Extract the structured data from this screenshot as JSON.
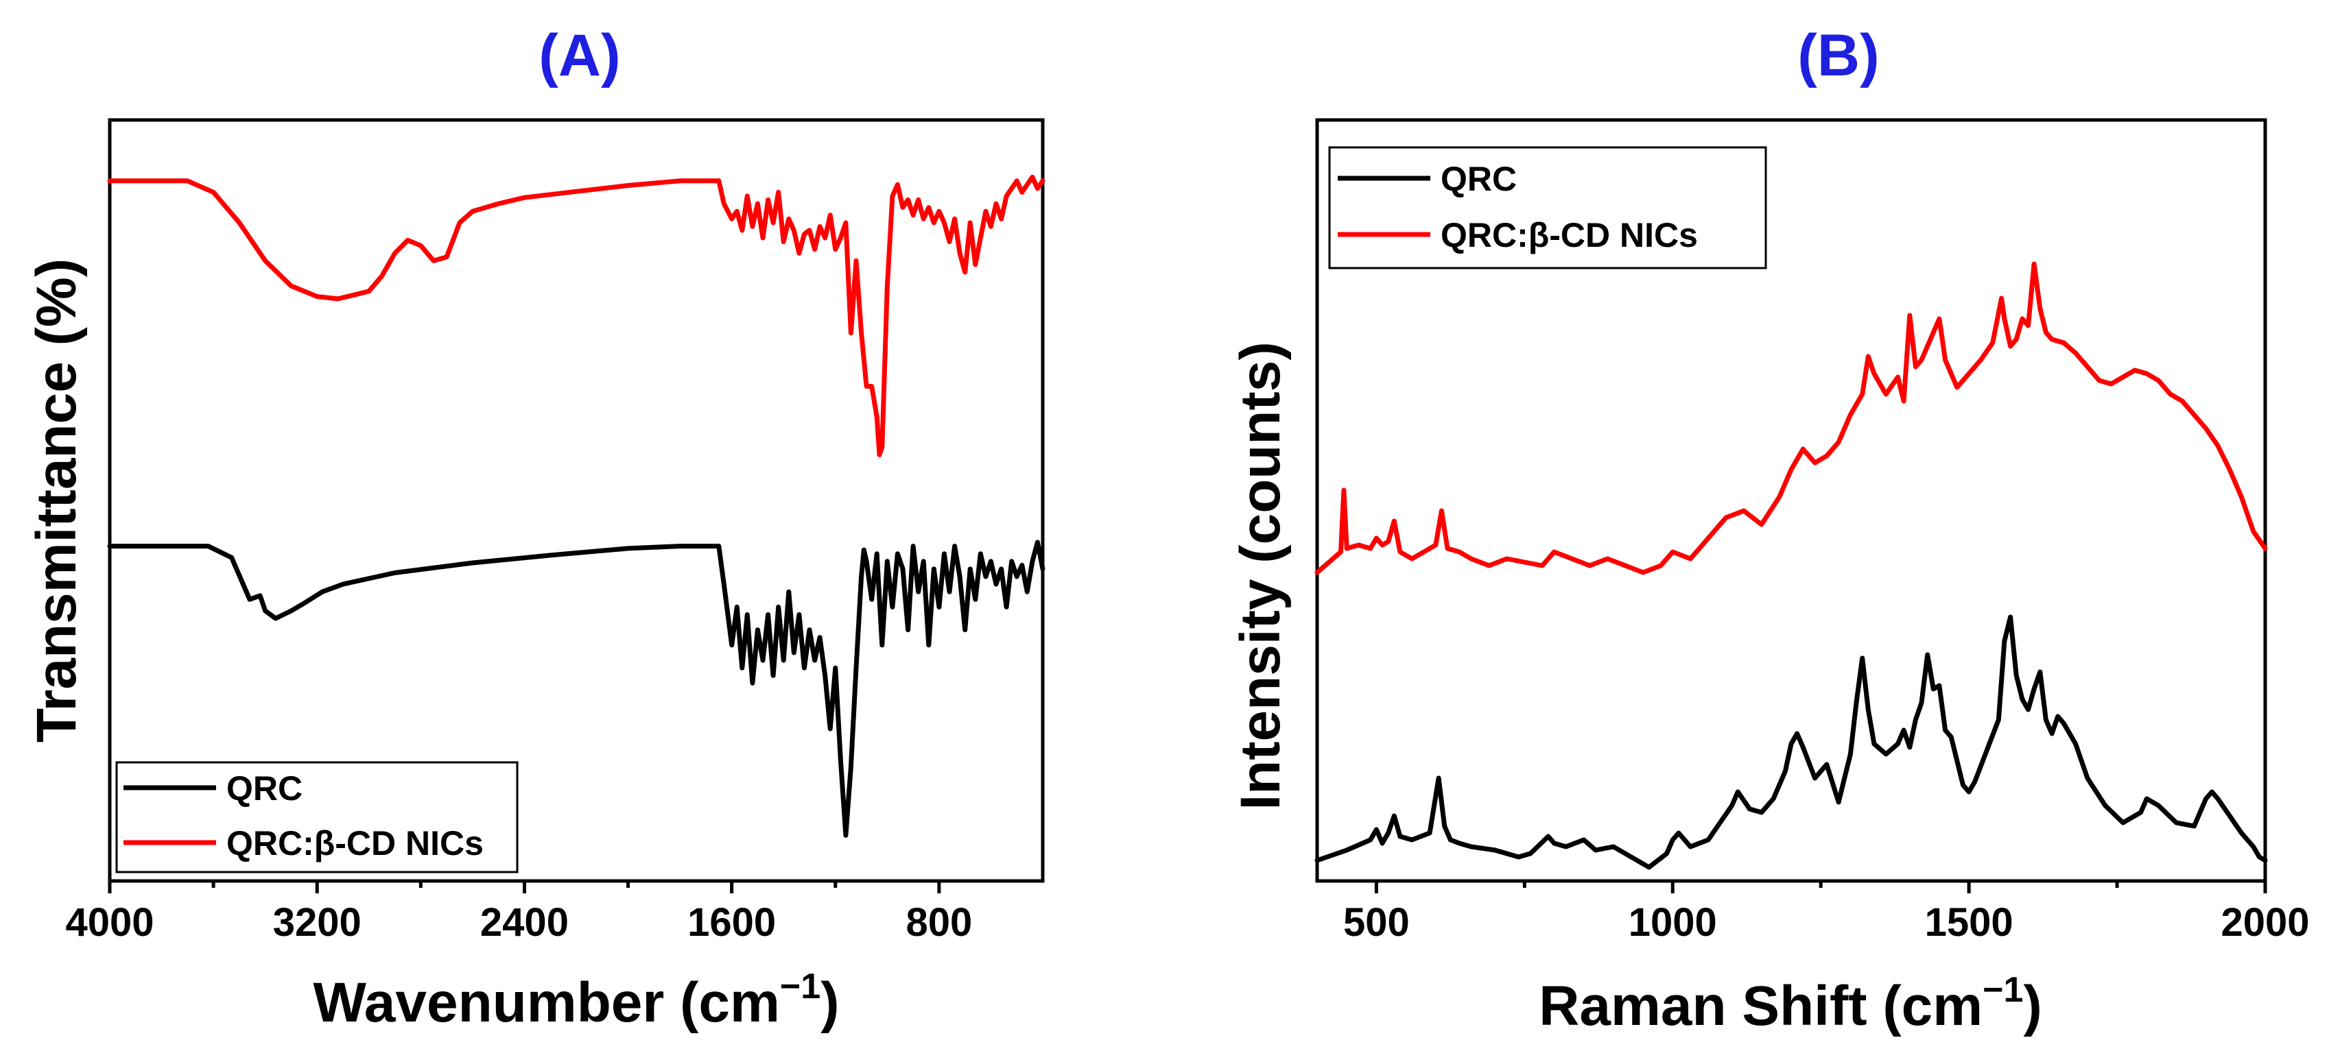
{
  "chart_data": [
    {
      "type": "line",
      "panel_label": "(A)",
      "xlabel": "Wavenumber (cm",
      "xlabel_sup": "−1",
      "xlabel_close": ")",
      "ylabel": "Transmittance (%)",
      "xlim": [
        4000,
        400
      ],
      "x_reversed": true,
      "x_ticks": [
        4000,
        3200,
        2400,
        1600,
        800
      ],
      "y_ticks_labeled": false,
      "grid": false,
      "legend_position": "bottom-left",
      "colors": {
        "QRC": "#000000",
        "QRC:β-CD NICs": "#ff0000"
      },
      "series": [
        {
          "name": "QRC",
          "color": "#000000",
          "x": [
            4000,
            3620,
            3530,
            3460,
            3420,
            3400,
            3360,
            3330,
            3300,
            3250,
            3180,
            3100,
            2900,
            2600,
            2300,
            2000,
            1800,
            1650,
            1630,
            1600,
            1580,
            1560,
            1540,
            1520,
            1500,
            1480,
            1460,
            1440,
            1420,
            1400,
            1380,
            1360,
            1340,
            1320,
            1300,
            1280,
            1260,
            1240,
            1220,
            1200,
            1180,
            1160,
            1140,
            1120,
            1100,
            1090,
            1080,
            1060,
            1040,
            1020,
            1000,
            980,
            960,
            940,
            920,
            900,
            880,
            860,
            840,
            820,
            800,
            780,
            760,
            740,
            720,
            700,
            680,
            660,
            640,
            620,
            600,
            580,
            560,
            540,
            520,
            500,
            480,
            460,
            440,
            420,
            400
          ],
          "y": [
            44.0,
            44.0,
            42.5,
            37.0,
            37.5,
            35.5,
            34.5,
            35.0,
            35.5,
            36.5,
            38.0,
            39.0,
            40.5,
            41.8,
            42.8,
            43.7,
            44.0,
            44.0,
            39.0,
            31.0,
            36.0,
            28.0,
            35.0,
            26.0,
            33.0,
            29.0,
            35.0,
            27.0,
            36.0,
            29.0,
            38.0,
            30.0,
            35.0,
            28.0,
            33.0,
            29.0,
            32.0,
            27.0,
            20.0,
            28.0,
            16.0,
            6.0,
            15.0,
            28.0,
            40.0,
            43.5,
            42.0,
            37.0,
            43.0,
            31.0,
            42.0,
            36.0,
            43.0,
            41.0,
            33.0,
            44.0,
            38.0,
            42.0,
            31.0,
            41.0,
            36.0,
            43.0,
            38.0,
            44.0,
            40.0,
            33.0,
            41.0,
            37.0,
            43.0,
            40.0,
            42.0,
            39.0,
            41.0,
            36.0,
            42.0,
            40.0,
            41.5,
            38.0,
            42.0,
            44.5,
            41.0
          ]
        },
        {
          "name": "QRC:β-CD NICs",
          "color": "#ff0000",
          "x": [
            4000,
            3700,
            3600,
            3500,
            3400,
            3300,
            3200,
            3120,
            3000,
            2950,
            2900,
            2850,
            2800,
            2750,
            2700,
            2650,
            2600,
            2500,
            2400,
            2200,
            2000,
            1800,
            1700,
            1650,
            1630,
            1600,
            1580,
            1560,
            1540,
            1520,
            1500,
            1480,
            1460,
            1440,
            1420,
            1400,
            1380,
            1360,
            1340,
            1320,
            1300,
            1280,
            1260,
            1240,
            1220,
            1200,
            1180,
            1160,
            1140,
            1120,
            1100,
            1080,
            1060,
            1040,
            1030,
            1020,
            1000,
            980,
            960,
            940,
            920,
            900,
            880,
            860,
            840,
            820,
            800,
            780,
            760,
            740,
            720,
            700,
            680,
            660,
            640,
            620,
            600,
            580,
            560,
            540,
            520,
            500,
            480,
            460,
            440,
            420,
            400
          ],
          "y": [
            92.0,
            92.0,
            90.5,
            86.5,
            81.5,
            78.2,
            76.8,
            76.5,
            77.5,
            79.5,
            82.5,
            84.2,
            83.5,
            81.5,
            82.0,
            86.5,
            88.0,
            89.0,
            89.8,
            90.6,
            91.4,
            92.0,
            92.0,
            92.0,
            89.0,
            87.0,
            88.0,
            85.5,
            90.0,
            86.0,
            89.0,
            84.5,
            89.5,
            86.5,
            90.5,
            84.0,
            87.0,
            85.5,
            82.5,
            85.0,
            85.5,
            83.0,
            86.0,
            84.5,
            87.5,
            83.0,
            84.5,
            86.5,
            72.0,
            81.5,
            72.0,
            65.0,
            65.0,
            61.0,
            56.0,
            57.0,
            78.0,
            90.0,
            91.5,
            88.5,
            89.5,
            87.5,
            89.5,
            87.0,
            88.5,
            86.5,
            88.0,
            86.5,
            84.0,
            87.0,
            82.5,
            80.0,
            86.5,
            81.0,
            84.5,
            88.0,
            86.0,
            89.0,
            87.0,
            90.0,
            91.0,
            92.0,
            90.5,
            91.5,
            92.5,
            91.0,
            92.0
          ]
        }
      ]
    },
    {
      "type": "line",
      "panel_label": "(B)",
      "xlabel": "Raman Shift (cm",
      "xlabel_sup": "−1",
      "xlabel_close": ")",
      "ylabel": "Intensity (counts)",
      "xlim": [
        400,
        2000
      ],
      "x_ticks": [
        500,
        1000,
        1500,
        2000
      ],
      "y_ticks_labeled": false,
      "grid": false,
      "legend_position": "top-left",
      "colors": {
        "QRC": "#000000",
        "QRC:β-CD NICs": "#ff0000"
      },
      "series": [
        {
          "name": "QRC",
          "color": "#000000",
          "x": [
            400,
            450,
            490,
            500,
            510,
            520,
            530,
            540,
            560,
            590,
            605,
            615,
            625,
            640,
            660,
            700,
            740,
            760,
            790,
            800,
            820,
            850,
            870,
            900,
            930,
            960,
            990,
            1000,
            1010,
            1030,
            1060,
            1080,
            1100,
            1110,
            1130,
            1150,
            1170,
            1190,
            1200,
            1210,
            1220,
            1240,
            1250,
            1260,
            1280,
            1300,
            1310,
            1320,
            1330,
            1340,
            1360,
            1380,
            1390,
            1400,
            1410,
            1420,
            1430,
            1440,
            1450,
            1460,
            1470,
            1490,
            1500,
            1510,
            1530,
            1550,
            1560,
            1570,
            1580,
            1590,
            1600,
            1610,
            1620,
            1630,
            1640,
            1650,
            1660,
            1680,
            1700,
            1730,
            1760,
            1790,
            1800,
            1820,
            1850,
            1880,
            1900,
            1910,
            1920,
            1940,
            1960,
            1980,
            1990,
            2000
          ],
          "y": [
            4,
            7,
            10,
            13,
            9,
            12,
            17,
            11,
            10,
            12,
            28,
            14,
            10,
            9,
            8,
            7,
            5,
            6,
            11,
            9,
            8,
            10,
            7,
            8,
            5,
            2,
            6,
            10,
            12,
            8,
            10,
            15,
            20,
            24,
            19,
            18,
            22,
            30,
            38,
            41,
            37,
            28,
            30,
            32,
            21,
            35,
            50,
            63,
            48,
            38,
            35,
            38,
            42,
            37,
            45,
            50,
            64,
            54,
            55,
            42,
            40,
            26,
            24,
            27,
            36,
            45,
            68,
            75,
            58,
            51,
            48,
            54,
            59,
            45,
            41,
            46,
            44,
            38,
            28,
            20,
            15,
            18,
            22,
            20,
            15,
            14,
            22,
            24,
            22,
            17,
            12,
            8,
            5,
            4
          ]
        },
        {
          "name": "QRC:β-CD NICs",
          "color": "#ff0000",
          "x": [
            400,
            420,
            440,
            445,
            450,
            470,
            490,
            500,
            510,
            520,
            530,
            540,
            560,
            580,
            600,
            610,
            620,
            640,
            660,
            690,
            720,
            750,
            780,
            800,
            830,
            860,
            890,
            920,
            950,
            980,
            1000,
            1030,
            1060,
            1090,
            1120,
            1150,
            1180,
            1200,
            1220,
            1240,
            1260,
            1280,
            1300,
            1320,
            1330,
            1340,
            1360,
            1380,
            1390,
            1400,
            1410,
            1420,
            1440,
            1450,
            1460,
            1480,
            1500,
            1520,
            1540,
            1555,
            1560,
            1570,
            1580,
            1590,
            1600,
            1610,
            1620,
            1630,
            1640,
            1660,
            1680,
            1700,
            1720,
            1740,
            1760,
            1780,
            1800,
            1820,
            1840,
            1860,
            1880,
            1900,
            1920,
            1940,
            1960,
            1980,
            2000
          ],
          "y": [
            88,
            91,
            94,
            112,
            95,
            96,
            95,
            98,
            96,
            97,
            103,
            94,
            92,
            94,
            96,
            106,
            95,
            94,
            92,
            90,
            92,
            91,
            90,
            94,
            92,
            90,
            92,
            90,
            88,
            90,
            94,
            92,
            98,
            104,
            106,
            102,
            110,
            118,
            124,
            120,
            122,
            126,
            134,
            140,
            151,
            146,
            140,
            145,
            138,
            163,
            148,
            150,
            158,
            162,
            150,
            142,
            146,
            150,
            155,
            168,
            162,
            154,
            156,
            162,
            160,
            178,
            165,
            158,
            156,
            155,
            152,
            148,
            144,
            143,
            145,
            147,
            146,
            144,
            140,
            138,
            134,
            130,
            125,
            118,
            110,
            100,
            95
          ]
        }
      ]
    }
  ]
}
